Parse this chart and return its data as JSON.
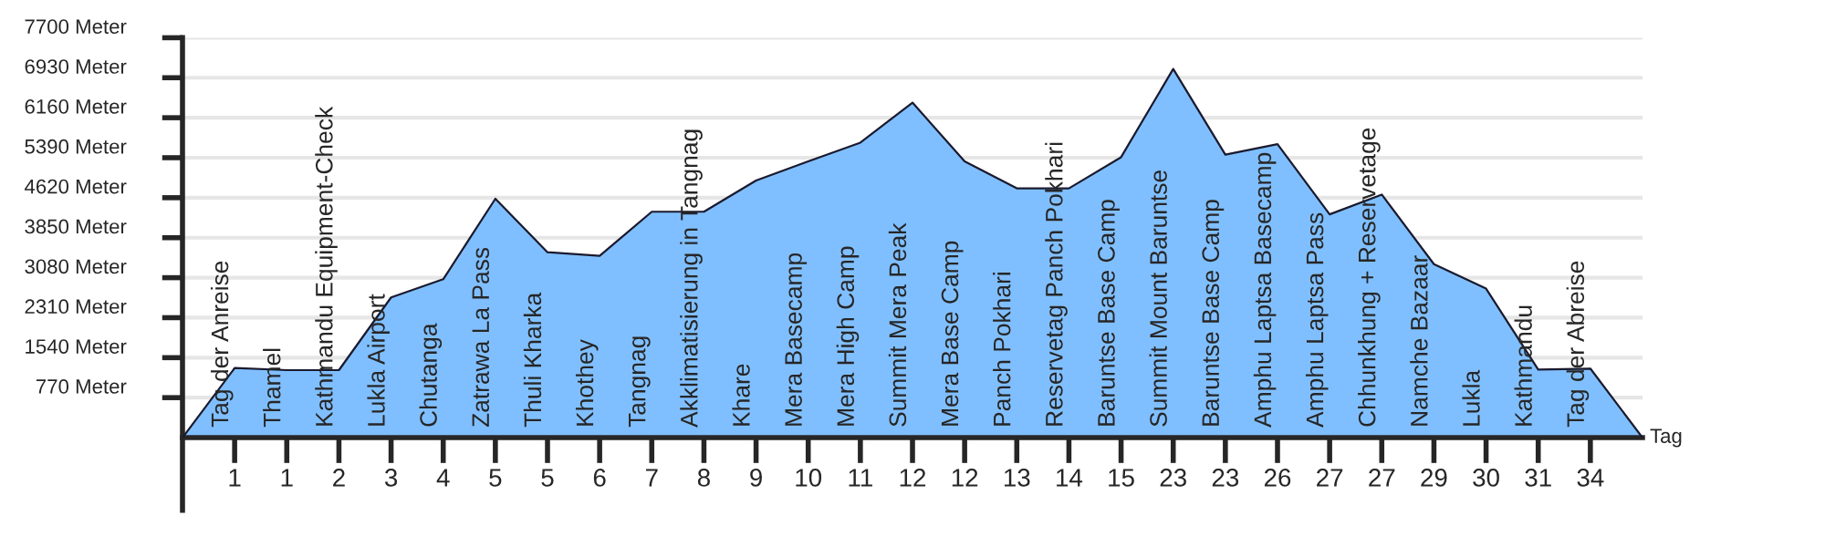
{
  "chart_data": {
    "type": "area",
    "xlabel": "Tag",
    "color": "#80bfff",
    "categories": [
      null,
      "1",
      "1",
      "2",
      "3",
      "4",
      "5",
      "5",
      "6",
      "7",
      "8",
      "9",
      "10",
      "11",
      "12",
      "12",
      "13",
      "14",
      "15",
      "23",
      "23",
      "26",
      "27",
      "27",
      "29",
      "30",
      "31",
      "34",
      null
    ],
    "values": [
      0,
      1340,
      1300,
      1300,
      2700,
      3050,
      4600,
      3570,
      3500,
      4350,
      4350,
      4950,
      5320,
      5680,
      6450,
      5320,
      4800,
      4800,
      5400,
      7100,
      5450,
      5650,
      4300,
      4680,
      3340,
      2870,
      1310,
      1330,
      0
    ],
    "annotations": [
      "Tag der Anreise",
      "Thamel",
      "Kathmandu Equipment-Check",
      "Lukla Airport",
      "Chutanga",
      "Zatrawa La Pass",
      "Thuli Kharka",
      "Khothey",
      "Tangnag",
      "Akklimatisierung in Tangnag",
      "Khare",
      "Mera Basecamp",
      "Mera High Camp",
      "Summit Mera Peak",
      "Mera Base Camp",
      "Panch Pokhari",
      "Reservetag Panch Pokhari",
      "Baruntse Base Camp",
      "Summit Mount Baruntse",
      "Baruntse Base Camp",
      "Amphu Laptsa Basecamp",
      "Amphu Laptsa Pass",
      "Chhunkhung + Reservetage",
      "Namche Bazaar",
      "Lukla",
      "Kathmandu",
      "Tag der Abreise"
    ],
    "ylim": [
      -1400,
      7700
    ],
    "yticks": [
      {
        "value": 770,
        "label": "770 Meter"
      },
      {
        "value": 1540,
        "label": "1540 Meter"
      },
      {
        "value": 2310,
        "label": "2310 Meter"
      },
      {
        "value": 3080,
        "label": "3080 Meter"
      },
      {
        "value": 3850,
        "label": "3850 Meter"
      },
      {
        "value": 4620,
        "label": "4620 Meter"
      },
      {
        "value": 5390,
        "label": "5390 Meter"
      },
      {
        "value": 6160,
        "label": "6160 Meter"
      },
      {
        "value": 6930,
        "label": "6930 Meter"
      },
      {
        "value": 7700,
        "label": "7700 Meter"
      }
    ],
    "grid": "y"
  }
}
